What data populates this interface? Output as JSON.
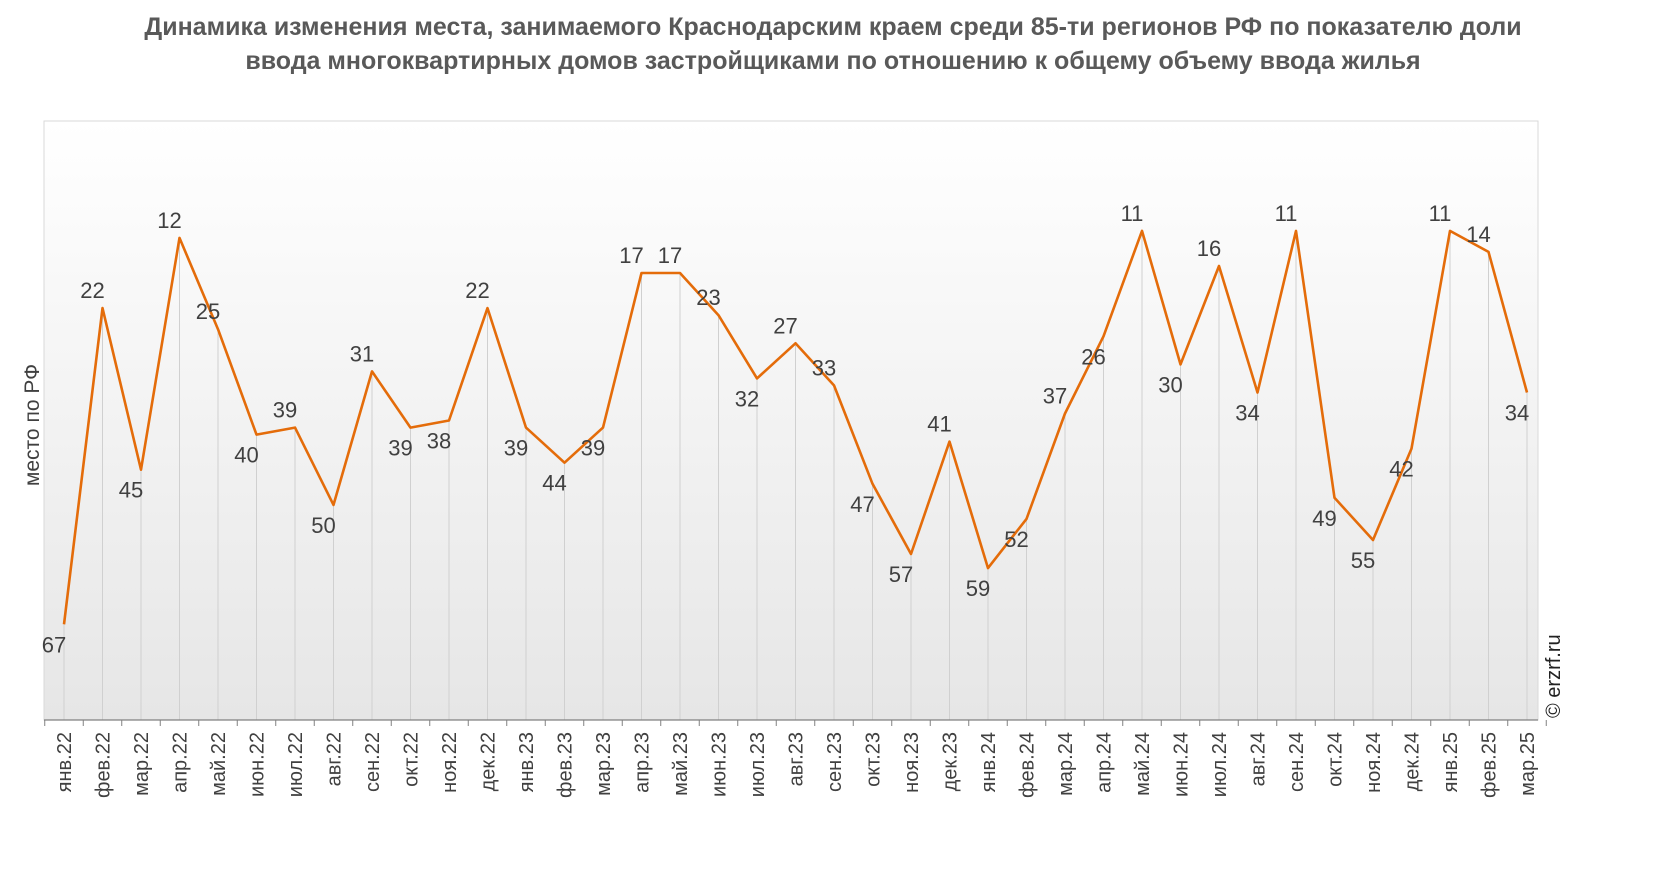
{
  "chart_data": {
    "type": "line",
    "title": "Динамика изменения места, занимаемого Краснодарским краем среди 85-ти регионов РФ по показателю доли ввода многоквартирных домов застройщиками по отношению к общему объему ввода жилья",
    "ylabel": "место по РФ",
    "xlabel": "",
    "y_reversed": true,
    "ylim": [
      1,
      85
    ],
    "grid": false,
    "categories": [
      "янв.22",
      "фев.22",
      "мар.22",
      "апр.22",
      "май.22",
      "июн.22",
      "июл.22",
      "авг.22",
      "сен.22",
      "окт.22",
      "ноя.22",
      "дек.22",
      "янв.23",
      "фев.23",
      "мар.23",
      "апр.23",
      "май.23",
      "июн.23",
      "июл.23",
      "авг.23",
      "сен.23",
      "окт.23",
      "ноя.23",
      "дек.23",
      "янв.24",
      "фев.24",
      "мар.24",
      "апр.24",
      "май.24",
      "июн.24",
      "июл.24",
      "авг.24",
      "сен.24",
      "окт.24",
      "ноя.24",
      "дек.24",
      "янв.25",
      "фев.25",
      "мар.25"
    ],
    "values": [
      67,
      22,
      45,
      12,
      25,
      40,
      39,
      50,
      31,
      39,
      38,
      22,
      39,
      44,
      39,
      17,
      17,
      23,
      32,
      27,
      33,
      47,
      57,
      41,
      59,
      52,
      37,
      26,
      11,
      30,
      16,
      34,
      11,
      49,
      55,
      42,
      11,
      14,
      34
    ],
    "series_color": "#E46C0A",
    "copyright": "© erzrf.ru"
  }
}
